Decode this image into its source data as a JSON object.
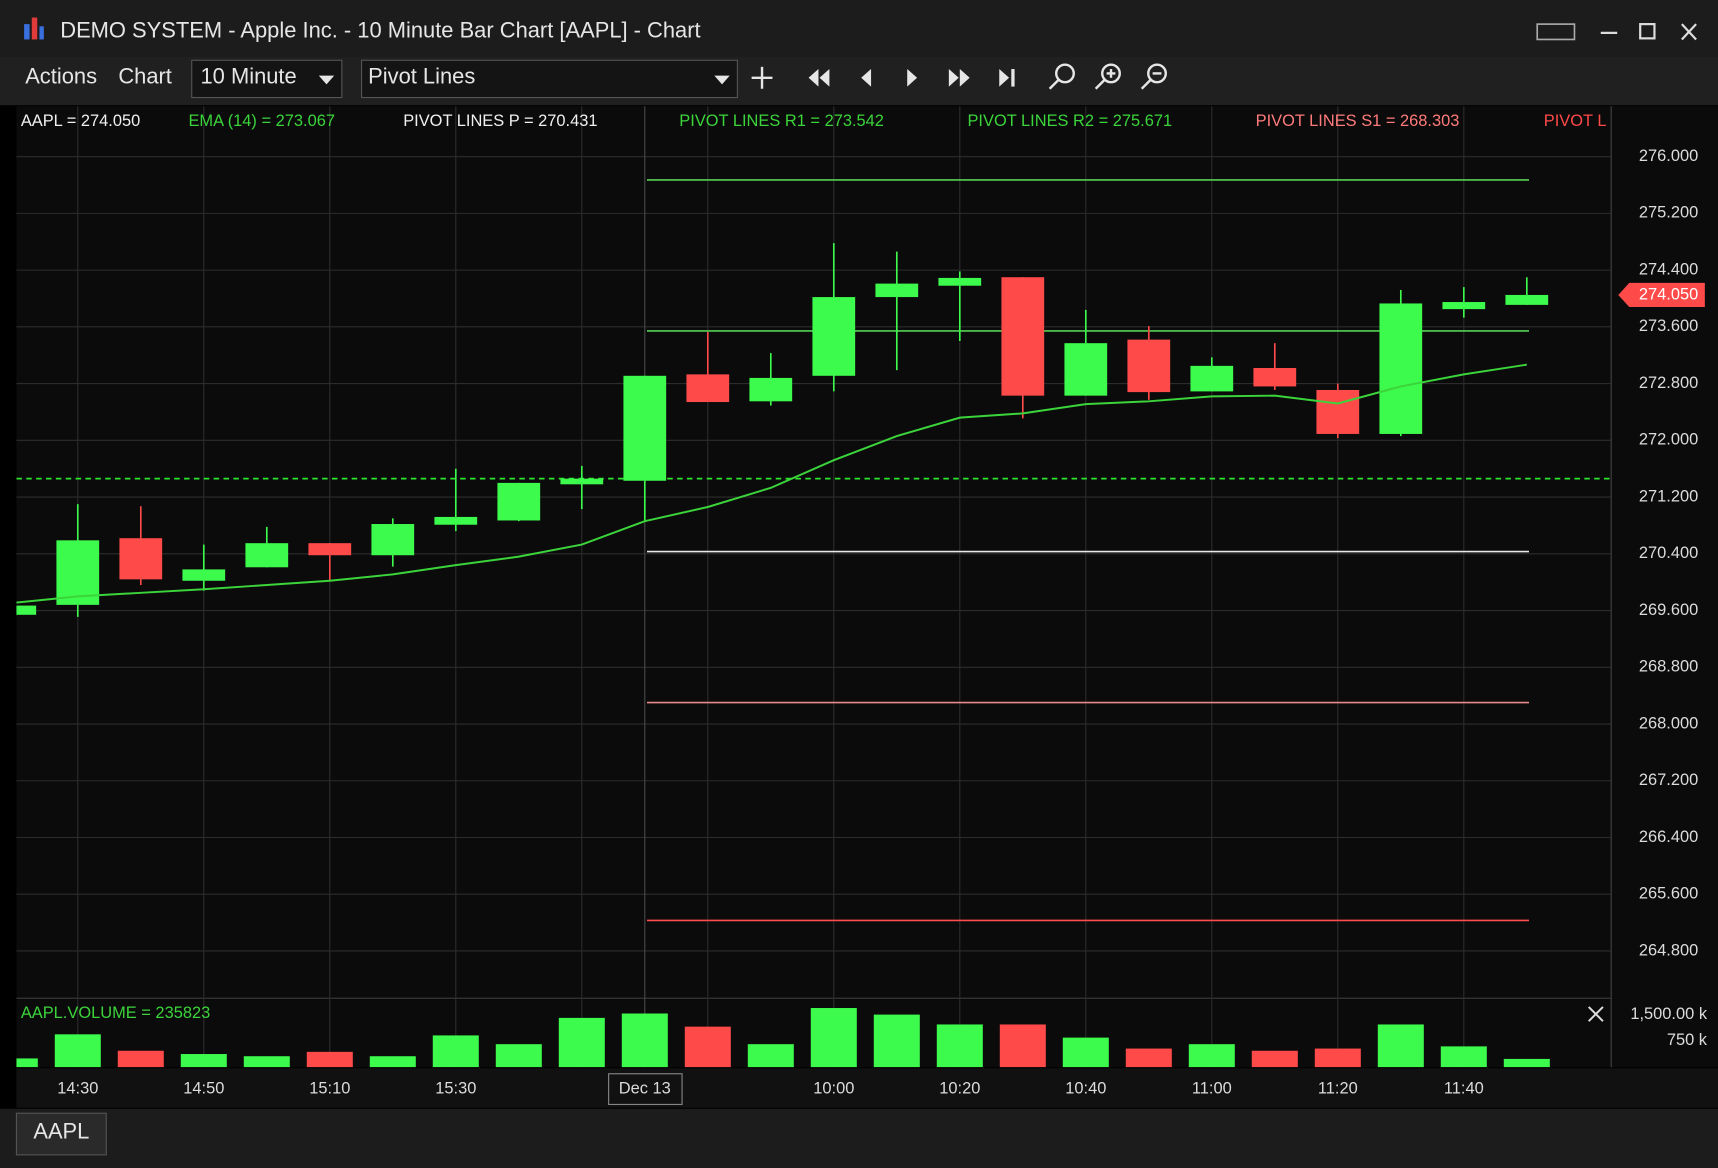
{
  "window": {
    "title": "DEMO SYSTEM - Apple Inc. - 10 Minute Bar Chart [AAPL] - Chart"
  },
  "toolbar": {
    "menus": [
      "Actions",
      "Chart"
    ],
    "interval": "10 Minute",
    "study": "Pivot Lines"
  },
  "legend": [
    {
      "text": "AAPL = 274.050",
      "color": "#f0f0f0"
    },
    {
      "text": "EMA (14) = 273.067",
      "color": "#3bd43b"
    },
    {
      "text": "PIVOT LINES P = 270.431",
      "color": "#f0f0f0"
    },
    {
      "text": "PIVOT LINES R1 = 273.542",
      "color": "#3bd43b"
    },
    {
      "text": "PIVOT LINES R2 = 275.671",
      "color": "#3bd43b"
    },
    {
      "text": "PIVOT LINES S1 = 268.303",
      "color": "#ff7b7b"
    },
    {
      "text": "PIVOT L",
      "color": "#ff4a4a"
    }
  ],
  "tabs": [
    "AAPL"
  ],
  "chart_data": [
    {
      "type": "candlestick",
      "categories": [
        null,
        "14:30",
        null,
        "14:50",
        null,
        "15:10",
        null,
        "15:30",
        null,
        null,
        "Dec 13",
        null,
        null,
        "10:00",
        null,
        "10:20",
        null,
        "10:40",
        null,
        "11:00",
        null,
        "11:20",
        null,
        "11:40",
        null
      ],
      "open": [
        269.54,
        269.68,
        270.62,
        270.02,
        270.21,
        270.55,
        270.38,
        270.81,
        270.87,
        271.38,
        271.43,
        272.93,
        272.55,
        272.91,
        274.02,
        274.18,
        274.3,
        272.63,
        273.42,
        272.69,
        273.02,
        272.71,
        272.09,
        273.85,
        273.91
      ],
      "high": [
        269.67,
        271.1,
        271.07,
        270.53,
        270.78,
        270.55,
        270.9,
        271.6,
        271.4,
        271.64,
        272.91,
        273.53,
        273.23,
        274.78,
        274.66,
        274.38,
        274.3,
        273.84,
        273.61,
        273.17,
        273.37,
        272.8,
        274.12,
        274.16,
        274.3
      ],
      "low": [
        269.28,
        269.51,
        269.96,
        269.88,
        270.21,
        270.02,
        270.22,
        270.72,
        270.86,
        271.03,
        270.87,
        272.54,
        272.49,
        272.69,
        272.99,
        273.4,
        272.31,
        272.63,
        272.57,
        272.69,
        272.71,
        272.03,
        272.06,
        273.73,
        273.91
      ],
      "close": [
        269.67,
        270.59,
        270.04,
        270.18,
        270.55,
        270.38,
        270.82,
        270.92,
        271.4,
        271.46,
        272.91,
        272.54,
        272.88,
        274.02,
        274.21,
        274.29,
        272.63,
        273.37,
        272.68,
        273.05,
        272.76,
        272.09,
        273.93,
        273.95,
        274.05
      ],
      "up_color": "#3dfb4c",
      "down_color": "#ff4a4a",
      "ema": {
        "values": [
          269.71,
          269.8,
          269.85,
          269.9,
          269.96,
          270.02,
          270.11,
          270.24,
          270.36,
          270.53,
          270.86,
          271.06,
          271.33,
          271.72,
          272.06,
          272.32,
          272.38,
          272.51,
          272.55,
          272.62,
          272.63,
          272.52,
          272.76,
          272.93,
          273.067
        ],
        "color": "#3bd43b"
      },
      "pivots": [
        {
          "value": 270.431,
          "color": "#e8e8e8"
        },
        {
          "value": 273.542,
          "color": "#54d154"
        },
        {
          "value": 275.671,
          "color": "#54d154"
        },
        {
          "value": 268.303,
          "color": "#e88a8a"
        },
        {
          "value": 265.23,
          "color": "#ff4d4d"
        }
      ],
      "dashed_line": {
        "value": 271.46,
        "color": "#2ee62e"
      },
      "last_price": {
        "value": 274.05,
        "label": "274.050",
        "color": "#ff4a4a"
      },
      "ylim": [
        264.15,
        276.71
      ],
      "yticks": [
        {
          "value": 264.8,
          "label": "264.800"
        },
        {
          "value": 265.6,
          "label": "265.600"
        },
        {
          "value": 266.4,
          "label": "266.400"
        },
        {
          "value": 267.2,
          "label": "267.200"
        },
        {
          "value": 268,
          "label": "268.000"
        },
        {
          "value": 268.8,
          "label": "268.800"
        },
        {
          "value": 269.6,
          "label": "269.600"
        },
        {
          "value": 270.4,
          "label": "270.400"
        },
        {
          "value": 271.2,
          "label": "271.200"
        },
        {
          "value": 272,
          "label": "272.000"
        },
        {
          "value": 272.8,
          "label": "272.800"
        },
        {
          "value": 273.6,
          "label": "273.600"
        },
        {
          "value": 274.4,
          "label": "274.400"
        },
        {
          "value": 275.2,
          "label": "275.200"
        },
        {
          "value": 276,
          "label": "276.000"
        }
      ],
      "grid": true
    },
    {
      "type": "bar",
      "title": "AAPL.VOLUME = 235823",
      "values": [
        250000,
        937500,
        468750,
        375000,
        312500,
        437500,
        312500,
        906250,
        656250,
        1406250,
        1531250,
        1156250,
        656250,
        1687500,
        1500000,
        1218750,
        1218750,
        843750,
        531250,
        656250,
        468750,
        531250,
        1218750,
        593750,
        235823
      ],
      "ylim": [
        0,
        1937500
      ],
      "yticks": [
        {
          "value": 750000,
          "label": "750 k"
        },
        {
          "value": 1500000,
          "label": "1,500.00 k"
        }
      ]
    }
  ]
}
